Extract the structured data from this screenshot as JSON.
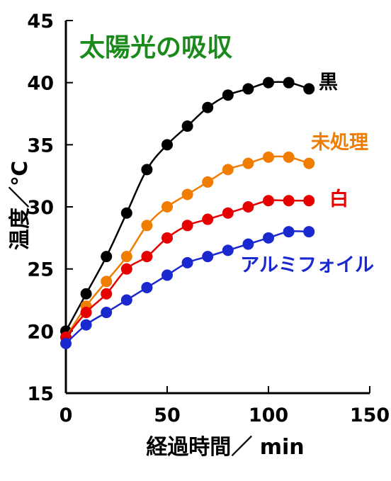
{
  "chart_data": {
    "type": "line",
    "title": "太陽光の吸収",
    "title_color": "#1a8a1a",
    "xlabel": "経過時間／ min",
    "ylabel": "温度／℃",
    "xlim": [
      0,
      150
    ],
    "ylim": [
      15,
      45
    ],
    "x_ticks": [
      "0",
      "50",
      "100",
      "150"
    ],
    "y_ticks": [
      "15",
      "20",
      "25",
      "30",
      "35",
      "40",
      "45"
    ],
    "grid": false,
    "x": [
      0,
      10,
      20,
      30,
      40,
      50,
      60,
      70,
      80,
      90,
      100,
      110,
      120
    ],
    "series": [
      {
        "name": "黒",
        "color": "#000000",
        "values": [
          20.0,
          23.0,
          26.0,
          29.5,
          33.0,
          35.0,
          36.5,
          38.0,
          39.0,
          39.5,
          40.0,
          40.0,
          39.5
        ]
      },
      {
        "name": "未処理",
        "color": "#f07c00",
        "values": [
          19.5,
          22.0,
          24.0,
          26.0,
          28.5,
          30.0,
          31.0,
          32.0,
          33.0,
          33.5,
          34.0,
          34.0,
          33.5
        ]
      },
      {
        "name": "白",
        "color": "#e60000",
        "values": [
          19.5,
          21.5,
          23.0,
          25.0,
          26.0,
          27.5,
          28.5,
          29.0,
          29.5,
          30.0,
          30.5,
          30.5,
          30.5
        ]
      },
      {
        "name": "アルミフォイル",
        "color": "#1a28d0",
        "values": [
          19.0,
          20.5,
          21.5,
          22.5,
          23.5,
          24.5,
          25.5,
          26.0,
          26.5,
          27.0,
          27.5,
          28.0,
          28.0
        ]
      }
    ]
  }
}
